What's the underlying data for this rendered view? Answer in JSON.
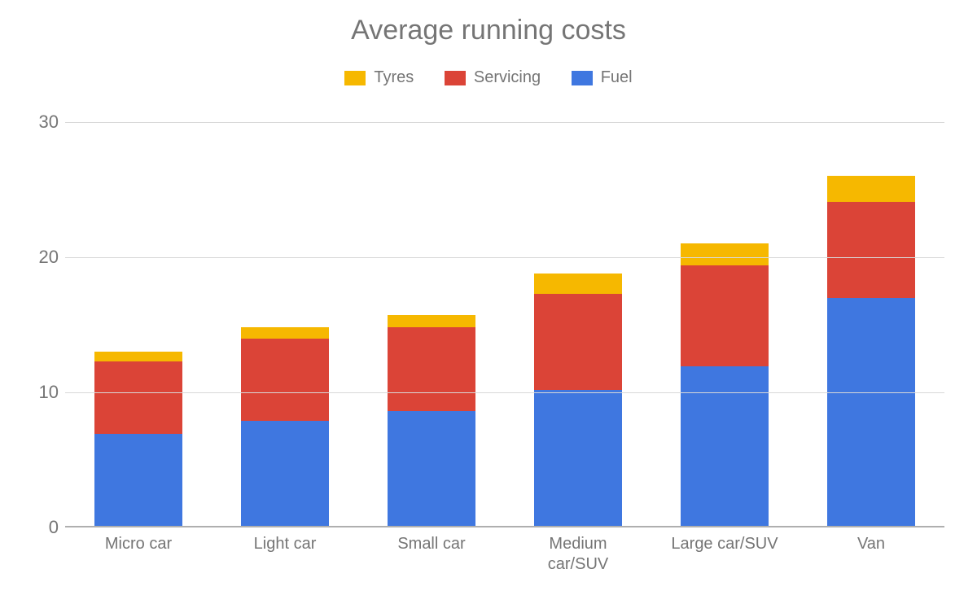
{
  "chart": {
    "type": "bar-stacked",
    "title": "Average running costs",
    "title_fontsize": 34,
    "title_color": "#757575",
    "background_color": "#ffffff",
    "grid_color": "#d9d9d9",
    "baseline_color": "#afafaf",
    "axis_label_color": "#757575",
    "axis_label_fontsize": 22,
    "x_label_fontsize": 20,
    "ylim": [
      0,
      30
    ],
    "yticks": [
      0,
      10,
      20,
      30
    ],
    "bar_width_ratio": 0.6,
    "legend_fontsize": 20,
    "series": [
      {
        "key": "tyres",
        "label": "Tyres",
        "color": "#f6b800"
      },
      {
        "key": "servicing",
        "label": "Servicing",
        "color": "#db4437"
      },
      {
        "key": "fuel",
        "label": "Fuel",
        "color": "#3f77e0"
      }
    ],
    "stack_order": [
      "fuel",
      "servicing",
      "tyres"
    ],
    "categories": [
      {
        "label": "Micro car",
        "fuel": 6.9,
        "servicing": 5.4,
        "tyres": 0.7
      },
      {
        "label": "Light car",
        "fuel": 7.9,
        "servicing": 6.1,
        "tyres": 0.8
      },
      {
        "label": "Small car",
        "fuel": 8.6,
        "servicing": 6.2,
        "tyres": 0.9
      },
      {
        "label": "Medium car/SUV",
        "fuel": 10.2,
        "servicing": 7.1,
        "tyres": 1.5
      },
      {
        "label": "Large car/SUV",
        "fuel": 11.9,
        "servicing": 7.5,
        "tyres": 1.6
      },
      {
        "label": "Van",
        "fuel": 17.0,
        "servicing": 7.1,
        "tyres": 1.9
      }
    ]
  }
}
